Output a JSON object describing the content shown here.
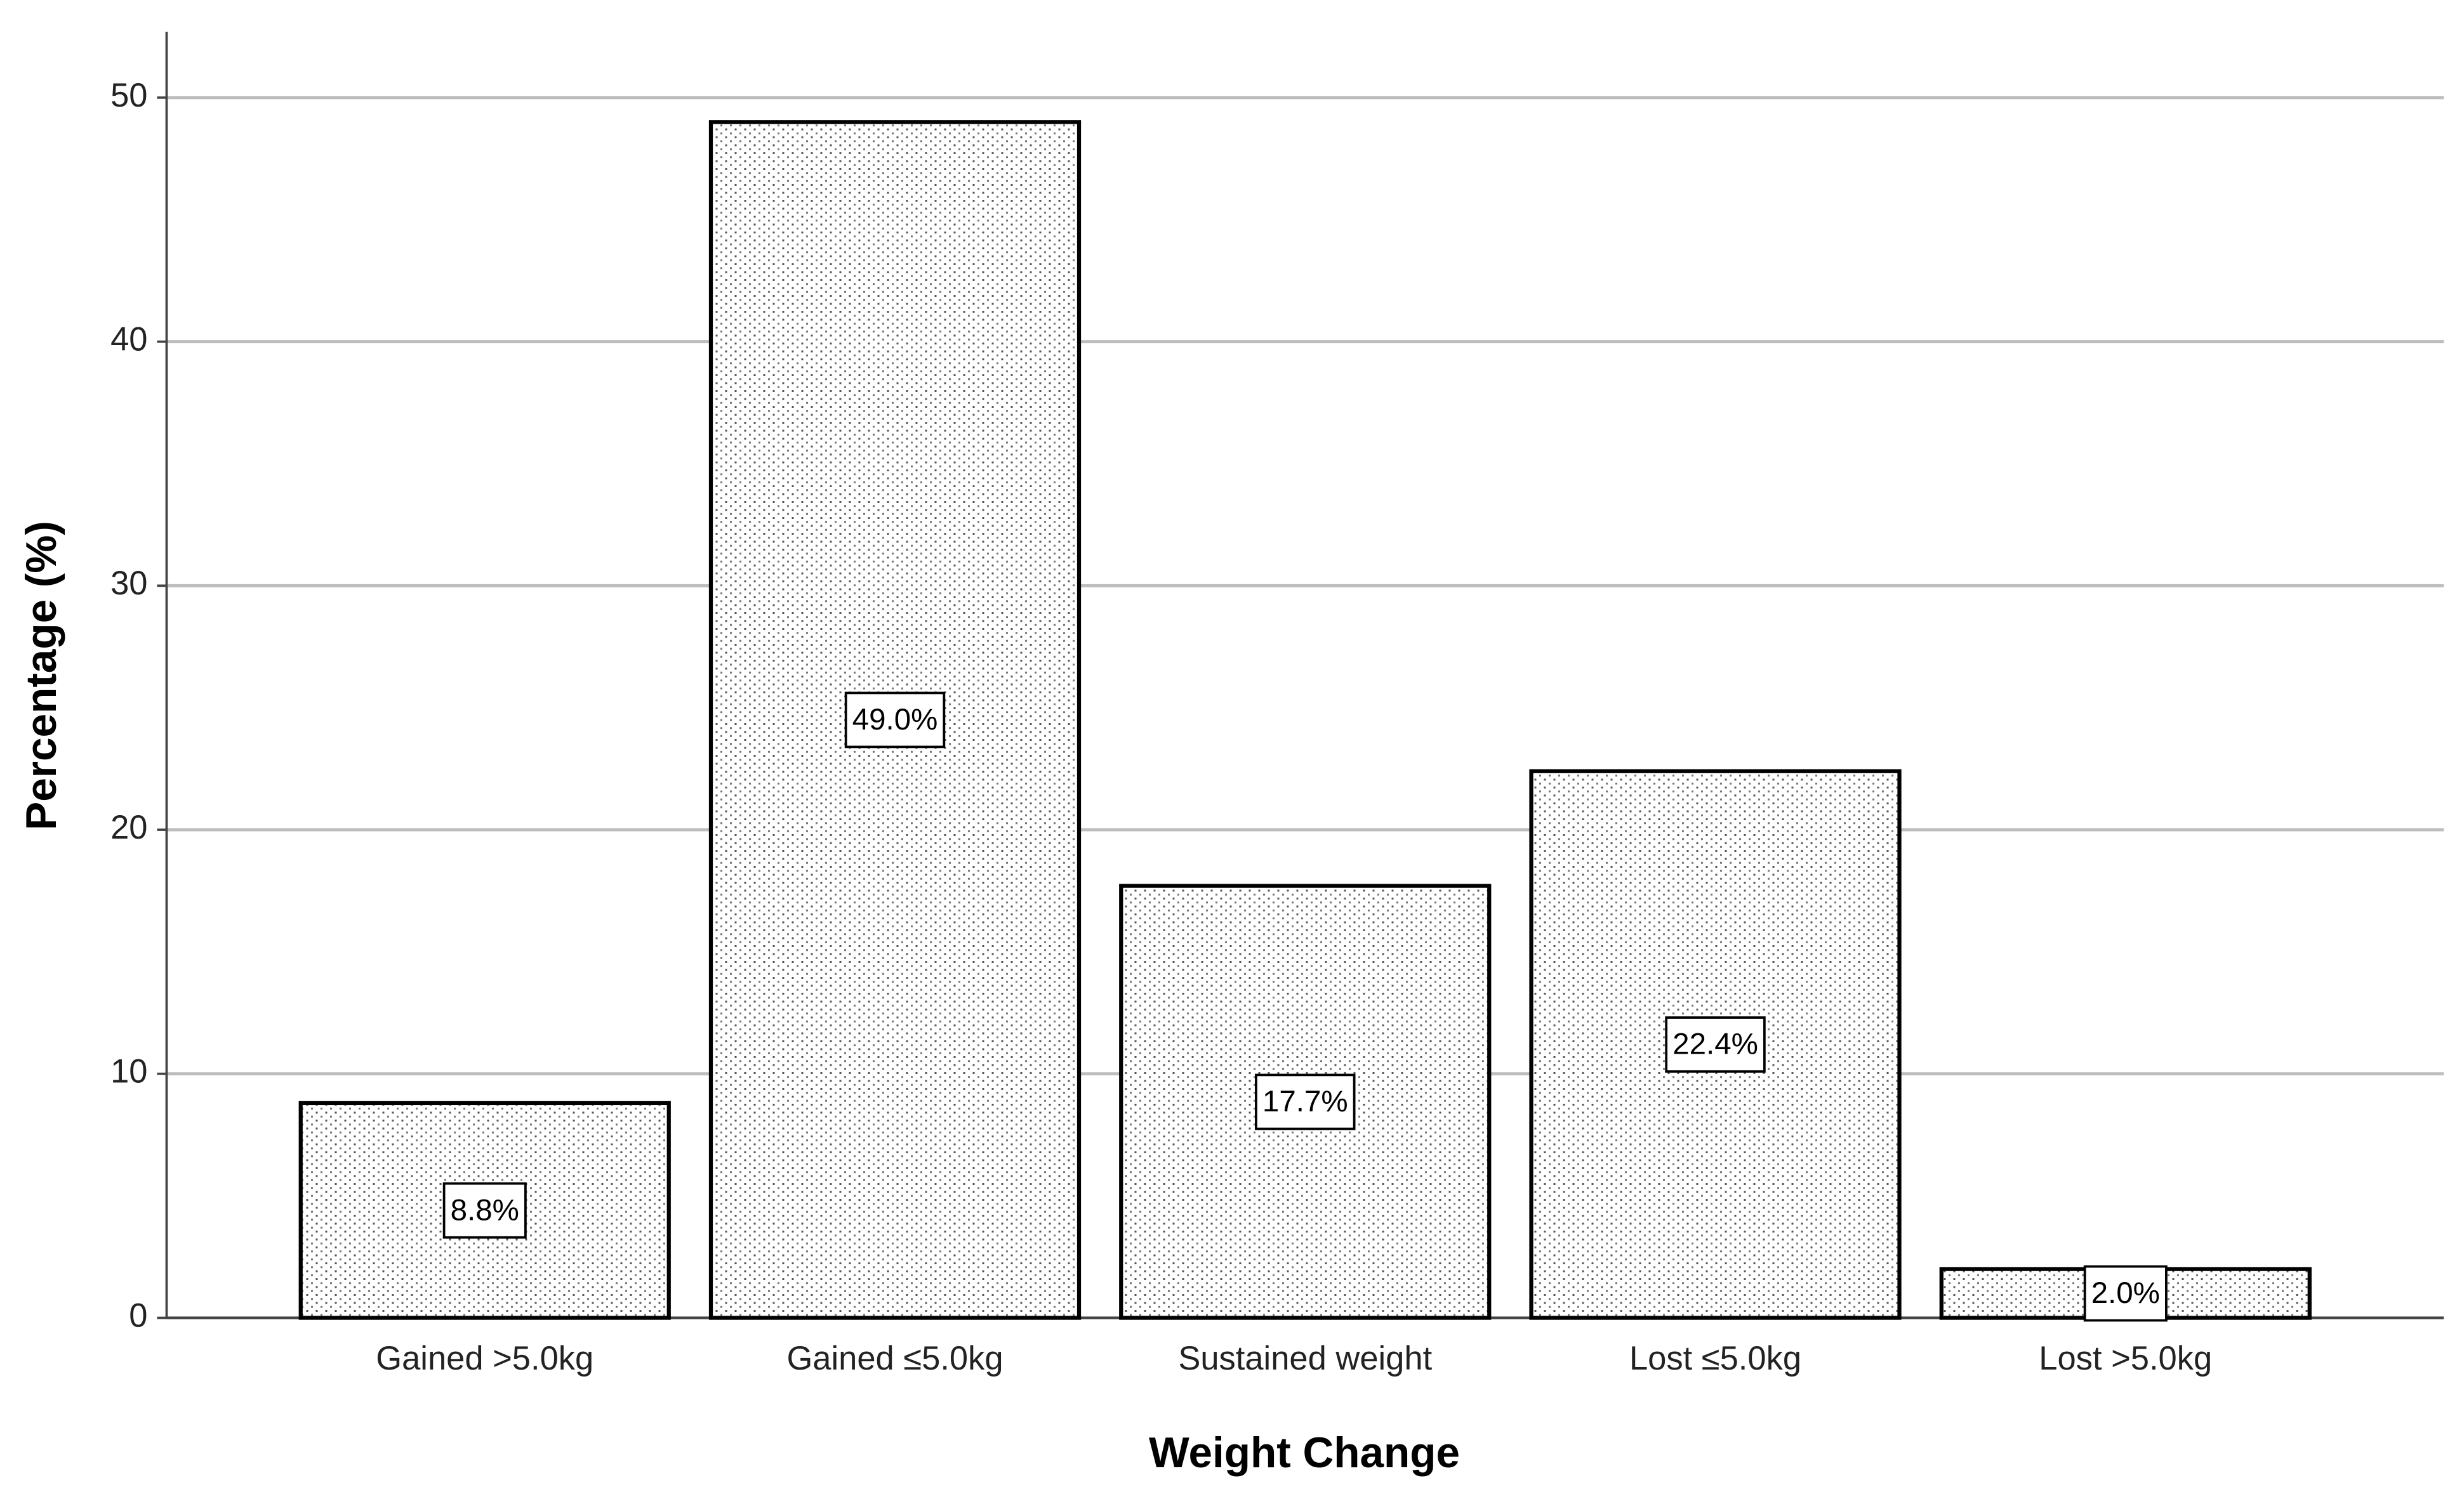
{
  "chart_data": {
    "type": "bar",
    "x_label": "Weight Change",
    "y_label": "Percentage (%)",
    "categories": [
      "Gained >5.0kg",
      "Gained ≤5.0kg",
      "Sustained weight",
      "Lost ≤5.0kg",
      "Lost >5.0kg"
    ],
    "values": [
      8.8,
      49.0,
      17.7,
      22.4,
      2.0
    ],
    "value_labels": [
      "8.8%",
      "49.0%",
      "17.7%",
      "22.4%",
      "2.0%"
    ],
    "color": "#000000",
    "ylim": [
      0,
      52.7
    ],
    "yticks": [
      0,
      10,
      20,
      30,
      40,
      50
    ],
    "grid": true
  }
}
